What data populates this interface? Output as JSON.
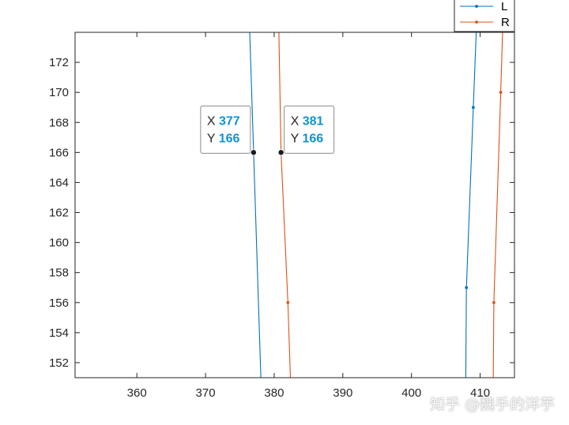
{
  "chart_data": {
    "type": "line",
    "xlim": [
      351,
      415
    ],
    "ylim": [
      151,
      174
    ],
    "x_ticks": [
      360,
      370,
      380,
      390,
      400,
      410
    ],
    "y_ticks": [
      152,
      154,
      156,
      158,
      160,
      162,
      164,
      166,
      168,
      170,
      172
    ],
    "grid": false,
    "legend_position": "top-right, outside",
    "series": [
      {
        "name": "L",
        "color": "#0072bd",
        "segments": [
          [
            [
              376.3,
              176
            ],
            [
              377.0,
              166
            ],
            [
              378.1,
              150.5
            ]
          ],
          [
            [
              407.9,
              150.5
            ],
            [
              408.0,
              157
            ],
            [
              409.0,
              169
            ],
            [
              409.6,
              176
            ]
          ]
        ],
        "markers": [
          [
            408.0,
            157
          ],
          [
            409.0,
            169
          ]
        ]
      },
      {
        "name": "R",
        "color": "#d95319",
        "segments": [
          [
            [
              380.6,
              176
            ],
            [
              381.0,
              166
            ],
            [
              382.0,
              156
            ],
            [
              382.4,
              150.5
            ]
          ],
          [
            [
              411.9,
              150.5
            ],
            [
              412.0,
              156
            ],
            [
              413.0,
              170
            ],
            [
              413.4,
              176
            ]
          ]
        ],
        "markers": [
          [
            382.0,
            156
          ],
          [
            412.0,
            156
          ],
          [
            413.0,
            170
          ]
        ]
      }
    ],
    "datatips": [
      {
        "series": "L",
        "x": 377,
        "y": 166,
        "x_label": "X",
        "y_label": "Y",
        "x_text": "377",
        "y_text": "166"
      },
      {
        "series": "R",
        "x": 381,
        "y": 166,
        "x_label": "X",
        "y_label": "Y",
        "x_text": "381",
        "y_text": "166"
      }
    ]
  },
  "watermark": "知乎 @魏手的洋芋"
}
